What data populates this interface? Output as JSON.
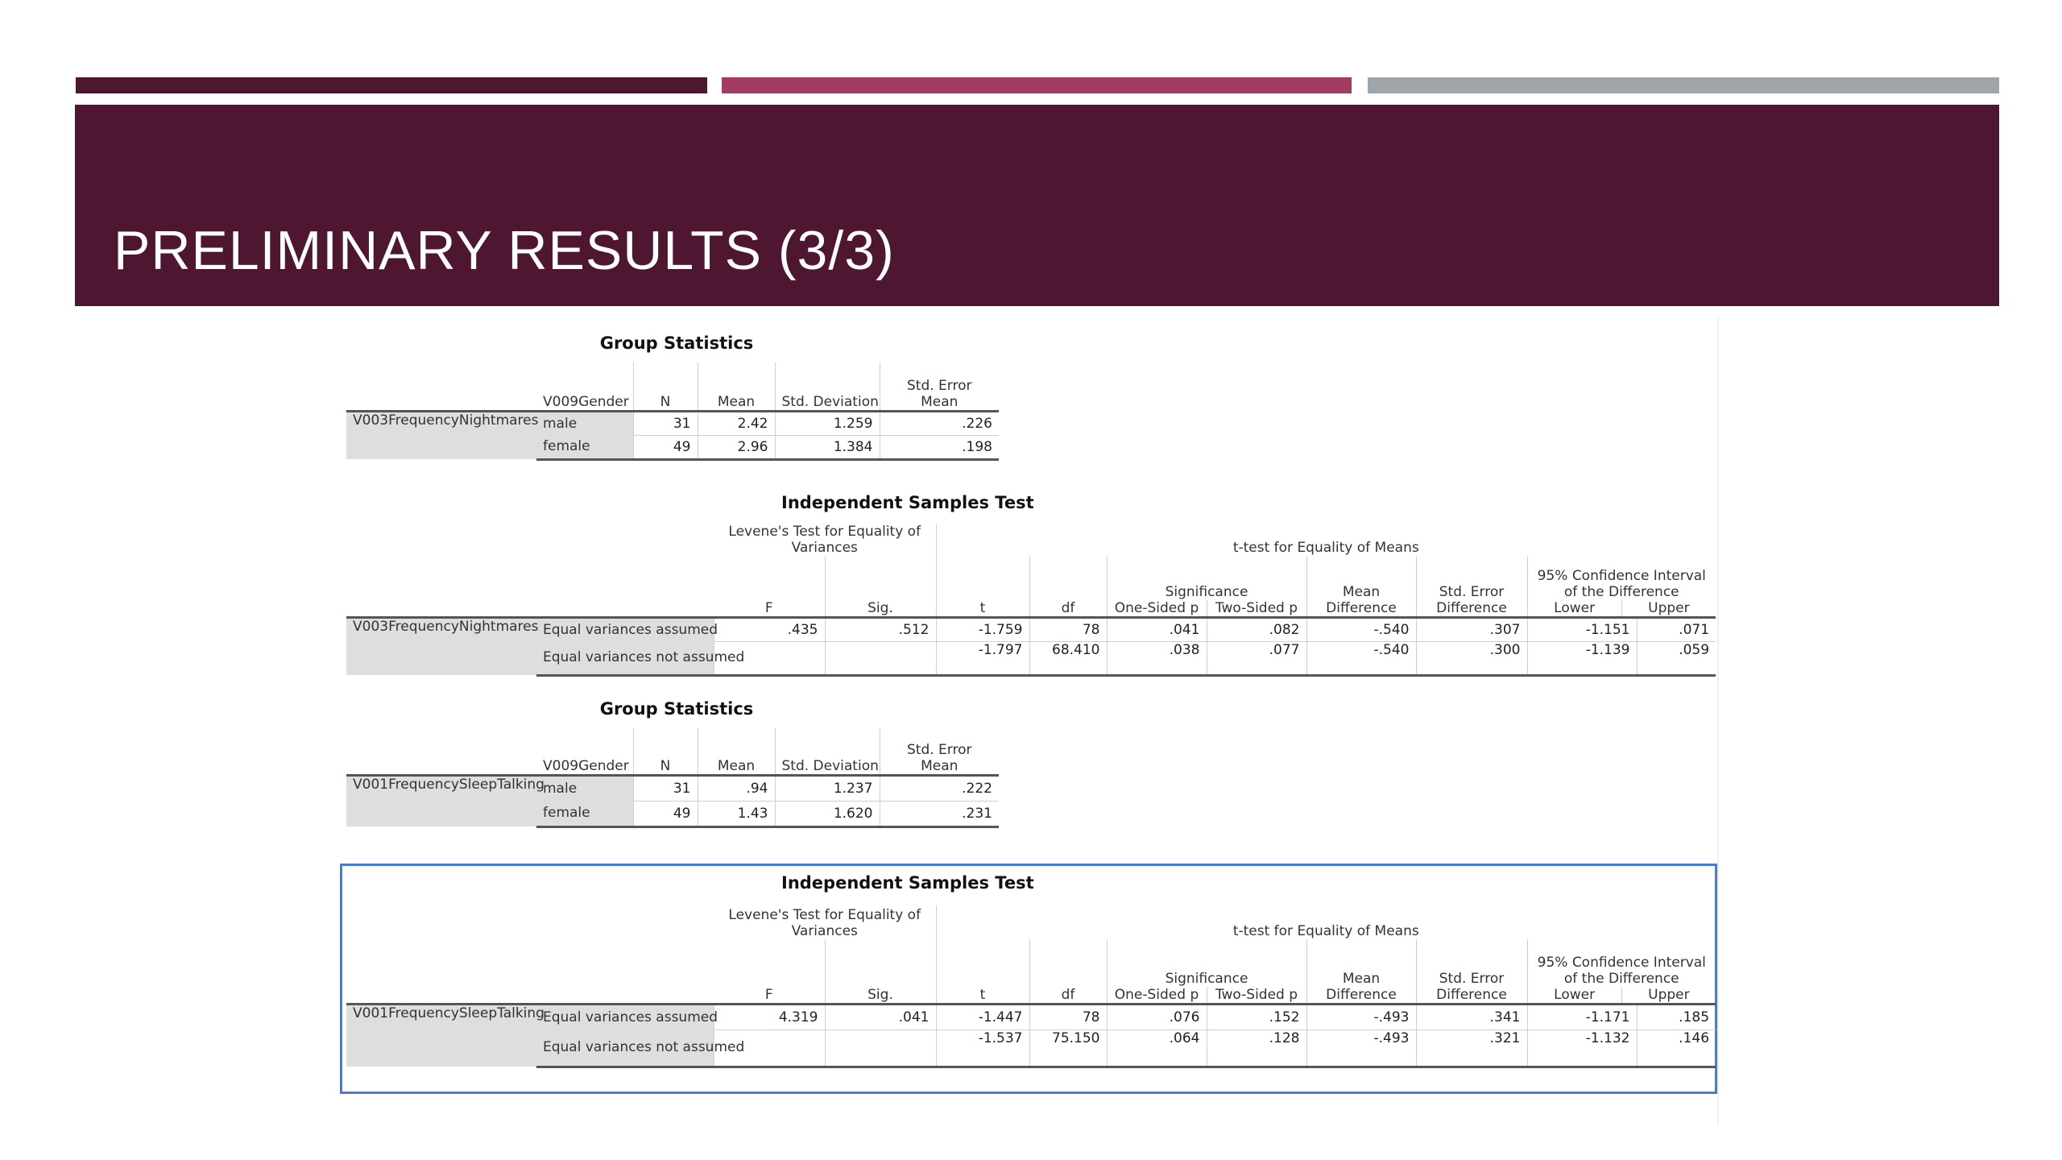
{
  "slide": {
    "title": "PRELIMINARY RESULTS (3/3)"
  },
  "colors": {
    "banner": "#4e1630",
    "bar_left": "#4e1630",
    "bar_middle": "#a33b63",
    "bar_right": "#9ea5ab",
    "selection": "#4a7bd4"
  },
  "group_stats_1": {
    "title": "Group Statistics",
    "headers": {
      "group_var": "V009Gender",
      "n": "N",
      "mean": "Mean",
      "sd": "Std. Deviation",
      "se": "Std. Error Mean"
    },
    "variable": "V003FrequencyNightmares",
    "rows": [
      {
        "group": "male",
        "n": "31",
        "mean": "2.42",
        "sd": "1.259",
        "se": ".226"
      },
      {
        "group": "female",
        "n": "49",
        "mean": "2.96",
        "sd": "1.384",
        "se": ".198"
      }
    ]
  },
  "ind_test_1": {
    "title": "Independent Samples Test",
    "headers": {
      "levene": "Levene's Test for Equality of Variances",
      "ttest": "t-test for Equality of Means",
      "significance": "Significance",
      "ci": "95% Confidence Interval of the Difference",
      "f": "F",
      "sig": "Sig.",
      "t": "t",
      "df": "df",
      "one_sided": "One-Sided p",
      "two_sided": "Two-Sided p",
      "mean_diff": "Mean Difference",
      "se_diff": "Std. Error Difference",
      "lower": "Lower",
      "upper": "Upper"
    },
    "variable": "V003FrequencyNightmares",
    "rows": [
      {
        "label": "Equal variances assumed",
        "f": ".435",
        "sig": ".512",
        "t": "-1.759",
        "df": "78",
        "one": ".041",
        "two": ".082",
        "md": "-.540",
        "sed": ".307",
        "lower": "-1.151",
        "upper": ".071"
      },
      {
        "label": "Equal variances not assumed",
        "f": "",
        "sig": "",
        "t": "-1.797",
        "df": "68.410",
        "one": ".038",
        "two": ".077",
        "md": "-.540",
        "sed": ".300",
        "lower": "-1.139",
        "upper": ".059"
      }
    ]
  },
  "group_stats_2": {
    "title": "Group Statistics",
    "headers": {
      "group_var": "V009Gender",
      "n": "N",
      "mean": "Mean",
      "sd": "Std. Deviation",
      "se": "Std. Error Mean"
    },
    "variable": "V001FrequencySleepTalking",
    "rows": [
      {
        "group": "male",
        "n": "31",
        "mean": ".94",
        "sd": "1.237",
        "se": ".222"
      },
      {
        "group": "female",
        "n": "49",
        "mean": "1.43",
        "sd": "1.620",
        "se": ".231"
      }
    ]
  },
  "ind_test_2": {
    "title": "Independent Samples Test",
    "headers": {
      "levene": "Levene's Test for Equality of Variances",
      "ttest": "t-test for Equality of Means",
      "significance": "Significance",
      "ci": "95% Confidence Interval of the Difference",
      "f": "F",
      "sig": "Sig.",
      "t": "t",
      "df": "df",
      "one_sided": "One-Sided p",
      "two_sided": "Two-Sided p",
      "mean_diff": "Mean Difference",
      "se_diff": "Std. Error Difference",
      "lower": "Lower",
      "upper": "Upper"
    },
    "variable": "V001FrequencySleepTalking",
    "rows": [
      {
        "label": "Equal variances assumed",
        "f": "4.319",
        "sig": ".041",
        "t": "-1.447",
        "df": "78",
        "one": ".076",
        "two": ".152",
        "md": "-.493",
        "sed": ".341",
        "lower": "-1.171",
        "upper": ".185"
      },
      {
        "label": "Equal variances not assumed",
        "f": "",
        "sig": "",
        "t": "-1.537",
        "df": "75.150",
        "one": ".064",
        "two": ".128",
        "md": "-.493",
        "sed": ".321",
        "lower": "-1.132",
        "upper": ".146"
      }
    ]
  }
}
